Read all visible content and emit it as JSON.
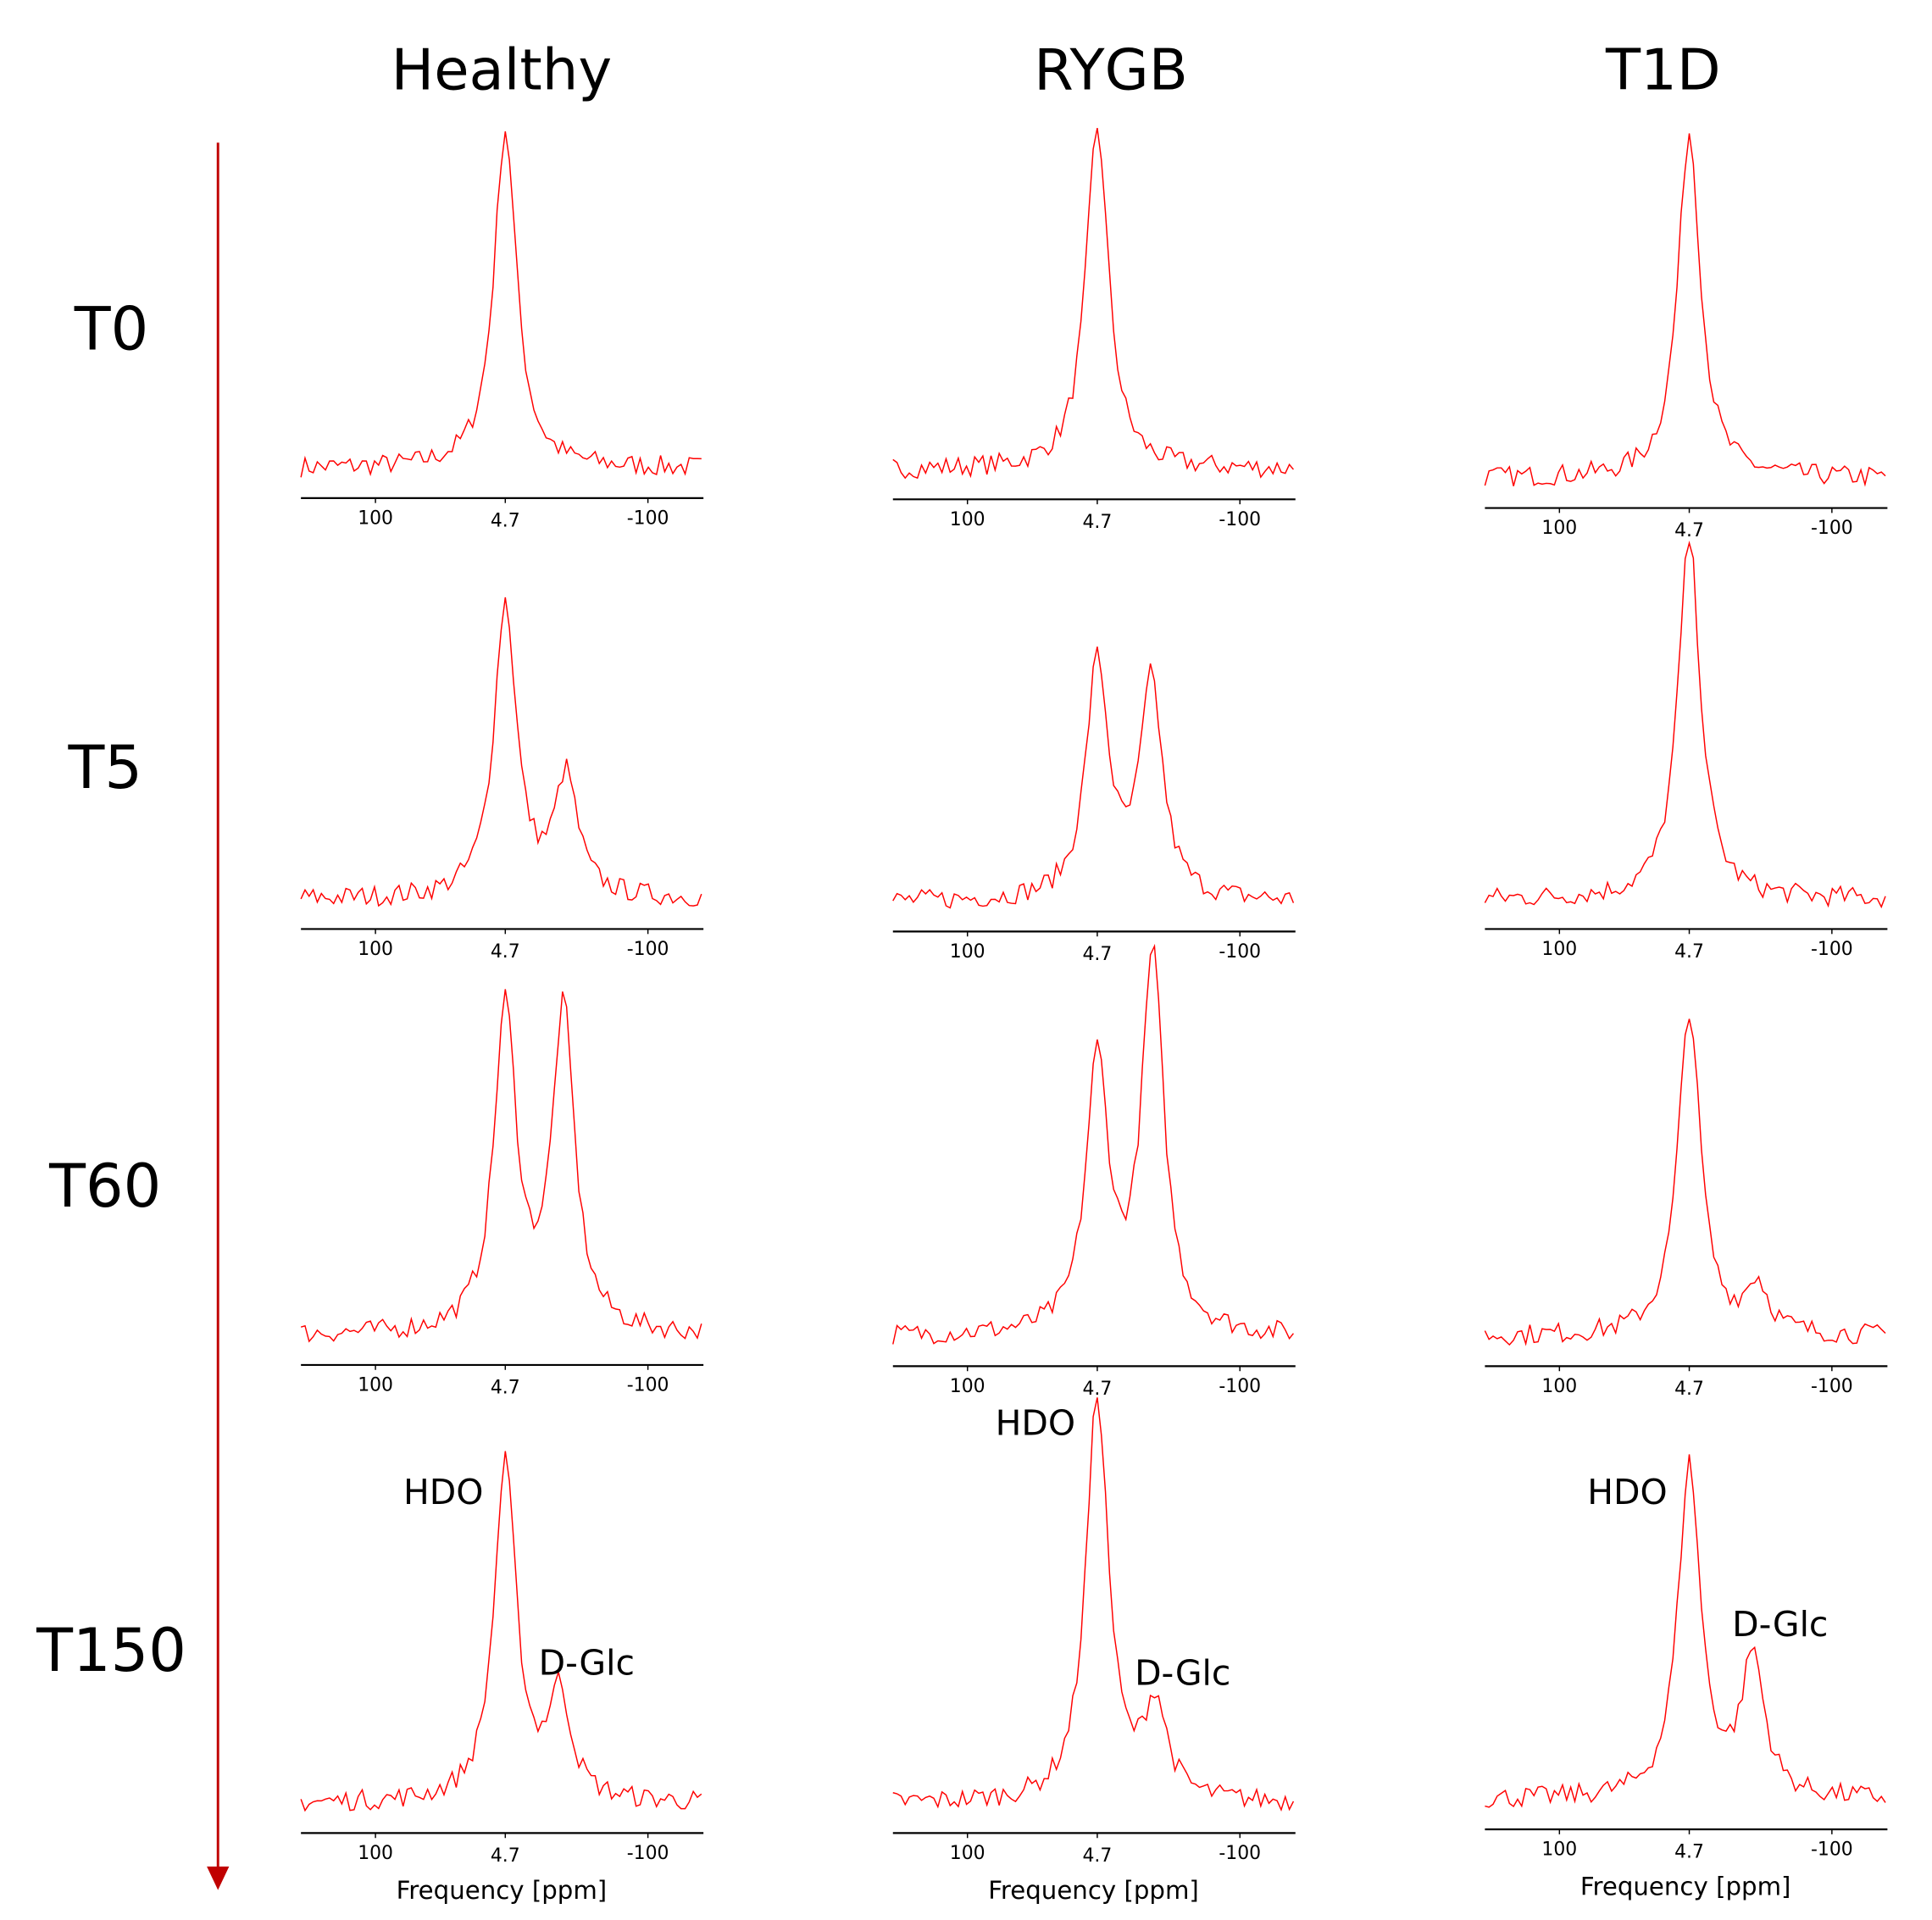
{
  "figure": {
    "column_titles": [
      "Healthy",
      "RYGB",
      "T1D"
    ],
    "row_labels": [
      "T0",
      "T5",
      "T60",
      "T150"
    ],
    "arrow_color": "#c00000",
    "line_color": "#ff0000"
  },
  "chart_data": [
    {
      "type": "line",
      "group": "Healthy",
      "time": "T0",
      "xlabel": "",
      "xticks": [
        "100",
        "4.7",
        "-100"
      ],
      "x_reversed": true,
      "peaks": [
        {
          "label": "",
          "ppm": 4.7,
          "relative_intensity": 0.98
        }
      ]
    },
    {
      "type": "line",
      "group": "RYGB",
      "time": "T0",
      "xlabel": "",
      "xticks": [
        "100",
        "4.7",
        "-100"
      ],
      "x_reversed": true,
      "peaks": [
        {
          "label": "",
          "ppm": 4.7,
          "relative_intensity": 0.99
        }
      ]
    },
    {
      "type": "line",
      "group": "T1D",
      "time": "T0",
      "xlabel": "",
      "xticks": [
        "100",
        "4.7",
        "-100"
      ],
      "x_reversed": true,
      "peaks": [
        {
          "label": "",
          "ppm": 4.7,
          "relative_intensity": 1.0
        }
      ]
    },
    {
      "type": "line",
      "group": "Healthy",
      "time": "T5",
      "xlabel": "",
      "xticks": [
        "100",
        "4.7",
        "-100"
      ],
      "x_reversed": true,
      "peaks": [
        {
          "label": "",
          "ppm": 4.7,
          "relative_intensity": 0.85
        },
        {
          "label": "",
          "ppm": -40,
          "relative_intensity": 0.34
        }
      ]
    },
    {
      "type": "line",
      "group": "RYGB",
      "time": "T5",
      "xlabel": "",
      "xticks": [
        "100",
        "4.7",
        "-100"
      ],
      "x_reversed": true,
      "peaks": [
        {
          "label": "",
          "ppm": 4.7,
          "relative_intensity": 0.68
        },
        {
          "label": "",
          "ppm": -35,
          "relative_intensity": 0.62
        }
      ]
    },
    {
      "type": "line",
      "group": "T1D",
      "time": "T5",
      "xlabel": "",
      "xticks": [
        "100",
        "4.7",
        "-100"
      ],
      "x_reversed": true,
      "peaks": [
        {
          "label": "",
          "ppm": 4.7,
          "relative_intensity": 1.04
        }
      ]
    },
    {
      "type": "line",
      "group": "Healthy",
      "time": "T60",
      "xlabel": "",
      "xticks": [
        "100",
        "4.7",
        "-100"
      ],
      "x_reversed": true,
      "peaks": [
        {
          "label": "",
          "ppm": 4.7,
          "relative_intensity": 0.93
        },
        {
          "label": "",
          "ppm": -38,
          "relative_intensity": 0.92
        }
      ]
    },
    {
      "type": "line",
      "group": "RYGB",
      "time": "T60",
      "xlabel": "",
      "xticks": [
        "100",
        "4.7",
        "-100"
      ],
      "x_reversed": true,
      "peaks": [
        {
          "label": "",
          "ppm": 4.7,
          "relative_intensity": 0.78
        },
        {
          "label": "",
          "ppm": -36,
          "relative_intensity": 1.08
        }
      ]
    },
    {
      "type": "line",
      "group": "T1D",
      "time": "T60",
      "xlabel": "",
      "xticks": [
        "100",
        "4.7",
        "-100"
      ],
      "x_reversed": true,
      "peaks": [
        {
          "label": "",
          "ppm": 4.7,
          "relative_intensity": 0.94
        },
        {
          "label": "",
          "ppm": -45,
          "relative_intensity": 0.14
        }
      ]
    },
    {
      "type": "line",
      "group": "Healthy",
      "time": "T150",
      "xlabel": "Frequency [ppm]",
      "xticks": [
        "100",
        "4.7",
        "-100"
      ],
      "x_reversed": true,
      "peaks": [
        {
          "label": "HDO",
          "ppm": 4.7,
          "relative_intensity": 0.97
        },
        {
          "label": "D-Glc",
          "ppm": -35,
          "relative_intensity": 0.3
        }
      ]
    },
    {
      "type": "line",
      "group": "RYGB",
      "time": "T150",
      "xlabel": "Frequency [ppm]",
      "xticks": [
        "100",
        "4.7",
        "-100"
      ],
      "x_reversed": true,
      "peaks": [
        {
          "label": "HDO",
          "ppm": 4.7,
          "relative_intensity": 1.17
        },
        {
          "label": "D-Glc",
          "ppm": -38,
          "relative_intensity": 0.27
        }
      ]
    },
    {
      "type": "line",
      "group": "T1D",
      "time": "T150",
      "xlabel": "Frequency [ppm]",
      "xticks": [
        "100",
        "4.7",
        "-100"
      ],
      "x_reversed": true,
      "peaks": [
        {
          "label": "HDO",
          "ppm": 4.7,
          "relative_intensity": 0.96
        },
        {
          "label": "D-Glc",
          "ppm": -42,
          "relative_intensity": 0.4
        }
      ]
    }
  ]
}
